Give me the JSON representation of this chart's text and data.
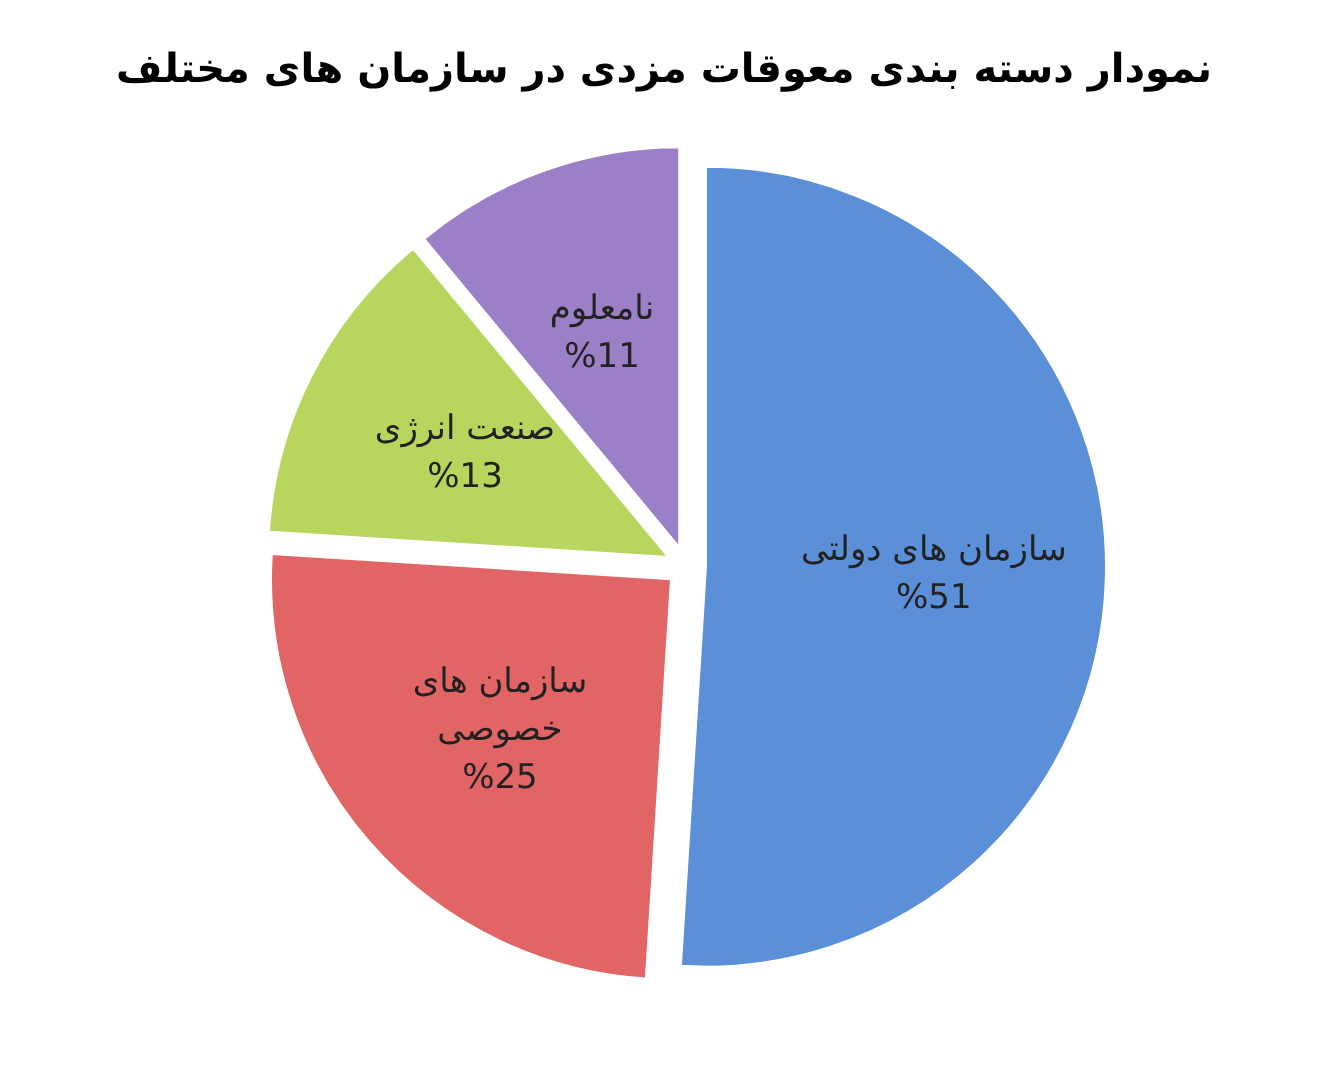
{
  "chart_data": {
    "type": "pie",
    "title": "نمودار دسته بندی معوقات مزدی در سازمان های مختلف",
    "categories": [
      "سازمان های دولتی",
      "سازمان های خصوصی",
      "صنعت انرژی",
      "نامعلوم"
    ],
    "values": [
      51,
      25,
      13,
      11
    ],
    "colors": [
      "#5b8fd8",
      "#e26565",
      "#b8d65e",
      "#9b80c8"
    ],
    "value_labels": [
      "%51",
      "%25",
      "%13",
      "%11"
    ]
  }
}
